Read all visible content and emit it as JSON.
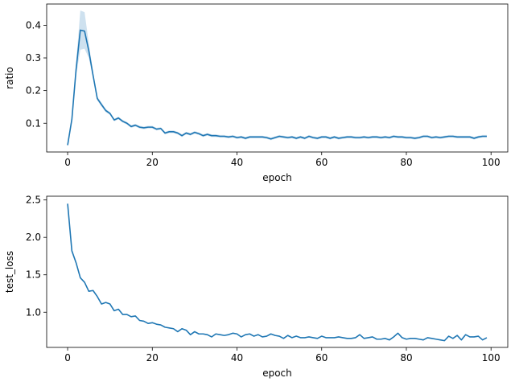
{
  "chart_data": [
    {
      "type": "line",
      "xlabel": "epoch",
      "ylabel": "ratio",
      "xlim": [
        -4.95,
        103.95
      ],
      "ylim": [
        0.012,
        0.465
      ],
      "xticks": [
        0,
        20,
        40,
        60,
        80,
        100
      ],
      "yticks": [
        0.1,
        0.2,
        0.3,
        0.4
      ],
      "xtick_labels": [
        "0",
        "20",
        "40",
        "60",
        "80",
        "100"
      ],
      "ytick_labels": [
        "0.1",
        "0.2",
        "0.3",
        "0.4"
      ],
      "grid": false,
      "line_color": "#1f77b4",
      "band_color": "#1f77b4",
      "series": [
        {
          "x": [
            0,
            1,
            2,
            3,
            4,
            5,
            6,
            7,
            8,
            9,
            10,
            11,
            12,
            13,
            14,
            15,
            16,
            17,
            18,
            19,
            20,
            21,
            22,
            23,
            24,
            25,
            26,
            27,
            28,
            29,
            30,
            31,
            32,
            33,
            34,
            35,
            36,
            37,
            38,
            39,
            40,
            41,
            42,
            43,
            44,
            45,
            46,
            47,
            48,
            49,
            50,
            51,
            52,
            53,
            54,
            55,
            56,
            57,
            58,
            59,
            60,
            61,
            62,
            63,
            64,
            65,
            66,
            67,
            68,
            69,
            70,
            71,
            72,
            73,
            74,
            75,
            76,
            77,
            78,
            79,
            80,
            81,
            82,
            83,
            84,
            85,
            86,
            87,
            88,
            89,
            90,
            91,
            92,
            93,
            94,
            95,
            96,
            97,
            98,
            99
          ],
          "y": [
            0.033,
            0.112,
            0.265,
            0.385,
            0.382,
            0.322,
            0.247,
            0.176,
            0.157,
            0.139,
            0.13,
            0.11,
            0.116,
            0.106,
            0.1,
            0.09,
            0.094,
            0.088,
            0.086,
            0.088,
            0.088,
            0.082,
            0.084,
            0.07,
            0.074,
            0.074,
            0.07,
            0.062,
            0.07,
            0.066,
            0.072,
            0.068,
            0.062,
            0.066,
            0.062,
            0.062,
            0.06,
            0.06,
            0.058,
            0.06,
            0.056,
            0.058,
            0.054,
            0.058,
            0.058,
            0.058,
            0.058,
            0.056,
            0.052,
            0.056,
            0.06,
            0.058,
            0.056,
            0.058,
            0.054,
            0.058,
            0.054,
            0.06,
            0.056,
            0.054,
            0.058,
            0.058,
            0.054,
            0.058,
            0.054,
            0.056,
            0.058,
            0.058,
            0.056,
            0.056,
            0.058,
            0.056,
            0.058,
            0.058,
            0.056,
            0.058,
            0.056,
            0.06,
            0.058,
            0.058,
            0.056,
            0.056,
            0.054,
            0.056,
            0.06,
            0.06,
            0.056,
            0.058,
            0.056,
            0.058,
            0.06,
            0.06,
            0.058,
            0.058,
            0.058,
            0.058,
            0.054,
            0.058,
            0.06,
            0.06
          ],
          "y_lower": [
            0.03,
            0.106,
            0.245,
            0.325,
            0.328,
            0.3,
            0.237,
            0.17,
            0.151,
            0.134,
            0.126,
            0.106,
            0.112,
            0.102,
            0.096,
            0.086,
            0.09,
            0.084,
            0.082,
            0.084,
            0.084,
            0.078,
            0.08,
            0.066,
            0.07,
            0.07,
            0.066,
            0.058,
            0.066,
            0.062,
            0.068,
            0.064,
            0.058,
            0.062,
            0.058,
            0.058,
            0.056,
            0.056,
            0.054,
            0.056,
            0.052,
            0.054,
            0.05,
            0.054,
            0.054,
            0.054,
            0.054,
            0.052,
            0.048,
            0.052,
            0.056,
            0.054,
            0.052,
            0.054,
            0.05,
            0.054,
            0.05,
            0.056,
            0.052,
            0.05,
            0.054,
            0.054,
            0.05,
            0.054,
            0.05,
            0.052,
            0.054,
            0.054,
            0.052,
            0.052,
            0.054,
            0.052,
            0.054,
            0.054,
            0.052,
            0.054,
            0.052,
            0.056,
            0.054,
            0.054,
            0.052,
            0.052,
            0.05,
            0.052,
            0.056,
            0.056,
            0.052,
            0.054,
            0.052,
            0.054,
            0.056,
            0.056,
            0.054,
            0.054,
            0.054,
            0.054,
            0.05,
            0.054,
            0.056,
            0.056
          ],
          "y_upper": [
            0.036,
            0.118,
            0.285,
            0.445,
            0.44,
            0.345,
            0.257,
            0.182,
            0.163,
            0.144,
            0.134,
            0.114,
            0.12,
            0.11,
            0.104,
            0.094,
            0.098,
            0.092,
            0.09,
            0.092,
            0.092,
            0.086,
            0.088,
            0.074,
            0.078,
            0.078,
            0.074,
            0.066,
            0.074,
            0.07,
            0.076,
            0.072,
            0.066,
            0.07,
            0.066,
            0.066,
            0.064,
            0.064,
            0.062,
            0.064,
            0.06,
            0.062,
            0.058,
            0.062,
            0.062,
            0.062,
            0.062,
            0.06,
            0.056,
            0.06,
            0.064,
            0.062,
            0.06,
            0.062,
            0.058,
            0.062,
            0.058,
            0.064,
            0.06,
            0.058,
            0.062,
            0.062,
            0.058,
            0.062,
            0.058,
            0.06,
            0.062,
            0.062,
            0.06,
            0.06,
            0.062,
            0.06,
            0.062,
            0.062,
            0.06,
            0.062,
            0.06,
            0.064,
            0.062,
            0.062,
            0.06,
            0.06,
            0.058,
            0.06,
            0.064,
            0.064,
            0.06,
            0.062,
            0.06,
            0.062,
            0.064,
            0.064,
            0.062,
            0.062,
            0.062,
            0.062,
            0.058,
            0.062,
            0.064,
            0.064
          ]
        }
      ]
    },
    {
      "type": "line",
      "xlabel": "epoch",
      "ylabel": "test_loss",
      "xlim": [
        -4.95,
        103.95
      ],
      "ylim": [
        0.53,
        2.55
      ],
      "xticks": [
        0,
        20,
        40,
        60,
        80,
        100
      ],
      "yticks": [
        1.0,
        1.5,
        2.0,
        2.5
      ],
      "xtick_labels": [
        "0",
        "20",
        "40",
        "60",
        "80",
        "100"
      ],
      "ytick_labels": [
        "1.0",
        "1.5",
        "2.0",
        "2.5"
      ],
      "grid": false,
      "line_color": "#1f77b4",
      "series": [
        {
          "x": [
            0,
            1,
            2,
            3,
            4,
            5,
            6,
            7,
            8,
            9,
            10,
            11,
            12,
            13,
            14,
            15,
            16,
            17,
            18,
            19,
            20,
            21,
            22,
            23,
            24,
            25,
            26,
            27,
            28,
            29,
            30,
            31,
            32,
            33,
            34,
            35,
            36,
            37,
            38,
            39,
            40,
            41,
            42,
            43,
            44,
            45,
            46,
            47,
            48,
            49,
            50,
            51,
            52,
            53,
            54,
            55,
            56,
            57,
            58,
            59,
            60,
            61,
            62,
            63,
            64,
            65,
            66,
            67,
            68,
            69,
            70,
            71,
            72,
            73,
            74,
            75,
            76,
            77,
            78,
            79,
            80,
            81,
            82,
            83,
            84,
            85,
            86,
            87,
            88,
            89,
            90,
            91,
            92,
            93,
            94,
            95,
            96,
            97,
            98,
            99
          ],
          "y": [
            2.45,
            1.82,
            1.66,
            1.46,
            1.4,
            1.28,
            1.29,
            1.21,
            1.11,
            1.13,
            1.11,
            1.02,
            1.04,
            0.97,
            0.97,
            0.94,
            0.95,
            0.89,
            0.88,
            0.85,
            0.86,
            0.84,
            0.83,
            0.8,
            0.79,
            0.78,
            0.74,
            0.78,
            0.76,
            0.7,
            0.74,
            0.71,
            0.71,
            0.7,
            0.67,
            0.71,
            0.7,
            0.69,
            0.7,
            0.72,
            0.71,
            0.67,
            0.7,
            0.71,
            0.68,
            0.7,
            0.67,
            0.68,
            0.71,
            0.69,
            0.68,
            0.65,
            0.69,
            0.66,
            0.68,
            0.66,
            0.66,
            0.67,
            0.66,
            0.65,
            0.68,
            0.66,
            0.66,
            0.66,
            0.67,
            0.66,
            0.65,
            0.65,
            0.66,
            0.7,
            0.65,
            0.66,
            0.67,
            0.64,
            0.64,
            0.65,
            0.63,
            0.67,
            0.72,
            0.66,
            0.64,
            0.65,
            0.65,
            0.64,
            0.63,
            0.66,
            0.65,
            0.64,
            0.63,
            0.62,
            0.68,
            0.65,
            0.69,
            0.63,
            0.7,
            0.67,
            0.67,
            0.68,
            0.63,
            0.66
          ]
        }
      ]
    }
  ]
}
